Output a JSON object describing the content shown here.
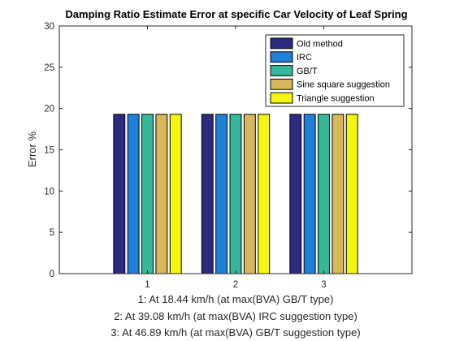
{
  "chart_data": {
    "type": "bar",
    "title": "Damping Ratio Estimate Error at specific Car Velocity of Leaf Spring",
    "ylabel": "Error %",
    "xlabel_lines": [
      "1: At 18.44 km/h (at max(BVA) GB/T type)",
      "2: At 39.08 km/h (at max(BVA) IRC suggestion type)",
      "3: At 46.89 km/h (at max(BVA) GB/T suggestion type)"
    ],
    "categories": [
      "1",
      "2",
      "3"
    ],
    "ylim": [
      0,
      30
    ],
    "yticks": [
      0,
      5,
      10,
      15,
      20,
      25,
      30
    ],
    "grid": false,
    "legend_position": "top-right",
    "series": [
      {
        "name": "Old method",
        "color": "#2e2a80",
        "values": [
          19.3,
          19.3,
          19.3
        ]
      },
      {
        "name": "IRC",
        "color": "#1f7fd9",
        "values": [
          19.3,
          19.3,
          19.3
        ]
      },
      {
        "name": "GB/T",
        "color": "#35b99a",
        "values": [
          19.3,
          19.3,
          19.3
        ]
      },
      {
        "name": "Sine square suggestion",
        "color": "#d6b85a",
        "values": [
          19.3,
          19.3,
          19.3
        ]
      },
      {
        "name": "Triangle suggestion",
        "color": "#f5f50f",
        "values": [
          19.3,
          19.3,
          19.3
        ]
      }
    ]
  }
}
